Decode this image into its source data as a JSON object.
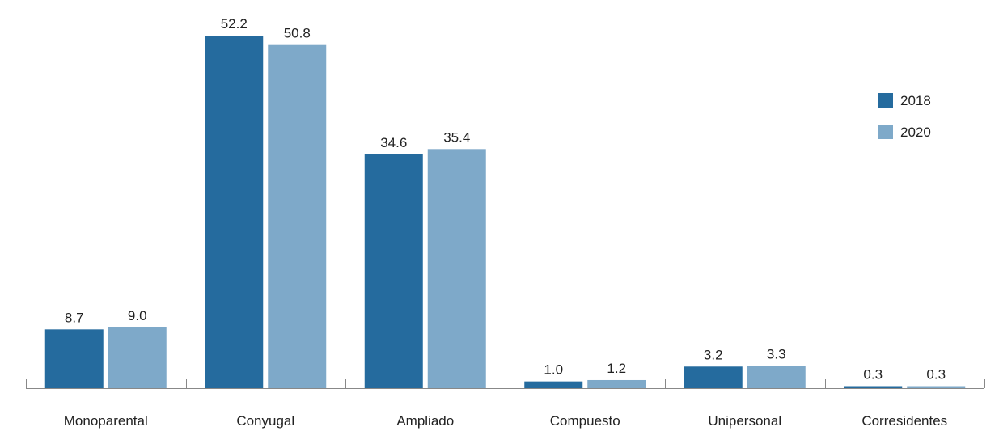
{
  "chart_data": {
    "type": "bar",
    "categories": [
      "Monoparental",
      "Conyugal",
      "Ampliado",
      "Compuesto",
      "Unipersonal",
      "Corresidentes"
    ],
    "series": [
      {
        "name": "2018",
        "color": "#256b9e",
        "values": [
          8.7,
          52.2,
          34.6,
          1.0,
          3.2,
          0.3
        ],
        "labels": [
          "8.7",
          "52.2",
          "34.6",
          "1.0",
          "3.2",
          "0.3"
        ]
      },
      {
        "name": "2020",
        "color": "#7ea9c9",
        "values": [
          9.0,
          50.8,
          35.4,
          1.2,
          3.3,
          0.3
        ],
        "labels": [
          "9.0",
          "50.8",
          "35.4",
          "1.2",
          "3.3",
          "0.3"
        ]
      }
    ],
    "title": "",
    "xlabel": "",
    "ylabel": "",
    "ylim": [
      0,
      52.2
    ],
    "grid": false,
    "legend": "top-right",
    "axis_color": "#888888"
  }
}
